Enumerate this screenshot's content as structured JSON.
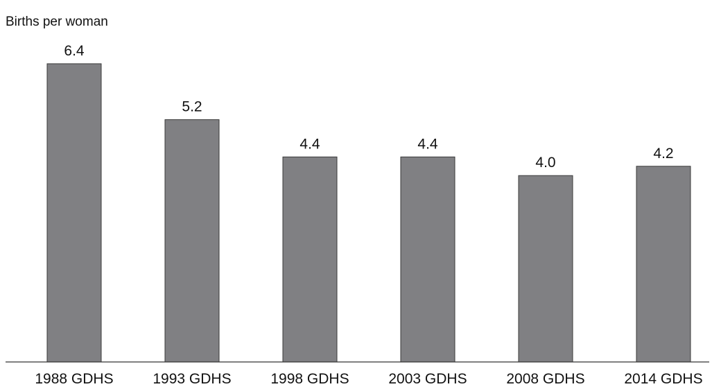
{
  "chart_data": {
    "type": "bar",
    "title": "",
    "xlabel": "",
    "ylabel": "Births per woman",
    "categories": [
      "1988 GDHS",
      "1993 GDHS",
      "1998 GDHS",
      "2003 GDHS",
      "2008 GDHS",
      "2014 GDHS"
    ],
    "values": [
      6.4,
      5.2,
      4.4,
      4.4,
      4.0,
      4.2
    ],
    "value_labels": [
      "6.4",
      "5.2",
      "4.4",
      "4.4",
      "4.0",
      "4.2"
    ],
    "ylim": [
      0,
      7
    ],
    "grid": false,
    "legend": "none",
    "bar_color": "#808083",
    "bar_stroke": "#3a3a3a",
    "axis_color": "#333333"
  }
}
